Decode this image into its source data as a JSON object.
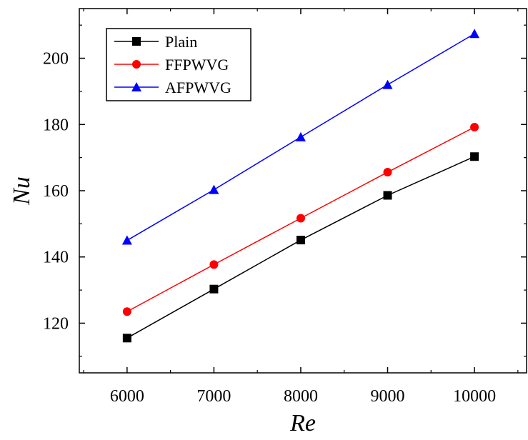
{
  "chart_data": {
    "type": "line",
    "title": "",
    "xlabel": "Re",
    "ylabel": "Nu",
    "x": [
      6000,
      7000,
      8000,
      9000,
      10000
    ],
    "x_ticks": [
      "6000",
      "7000",
      "8000",
      "9000",
      "10000"
    ],
    "y_ticks": [
      "120",
      "140",
      "160",
      "180",
      "200"
    ],
    "x_tick_values": [
      6000,
      7000,
      8000,
      9000,
      10000
    ],
    "y_tick_values": [
      120,
      140,
      160,
      180,
      200
    ],
    "xlim": [
      5450,
      10600
    ],
    "ylim": [
      105,
      215
    ],
    "grid": false,
    "legend_position": "top-left",
    "series": [
      {
        "name": "Plain",
        "color": "#000000",
        "marker": "square",
        "values": [
          115.5,
          130.3,
          145.1,
          158.6,
          170.3
        ]
      },
      {
        "name": "FFPWVG",
        "color": "#ff0000",
        "marker": "circle",
        "values": [
          123.5,
          137.7,
          151.7,
          165.6,
          179.2
        ]
      },
      {
        "name": "AFPWVG",
        "color": "#0000ff",
        "marker": "triangle",
        "values": [
          145.0,
          160.3,
          176.2,
          192.0,
          207.4
        ]
      }
    ]
  }
}
